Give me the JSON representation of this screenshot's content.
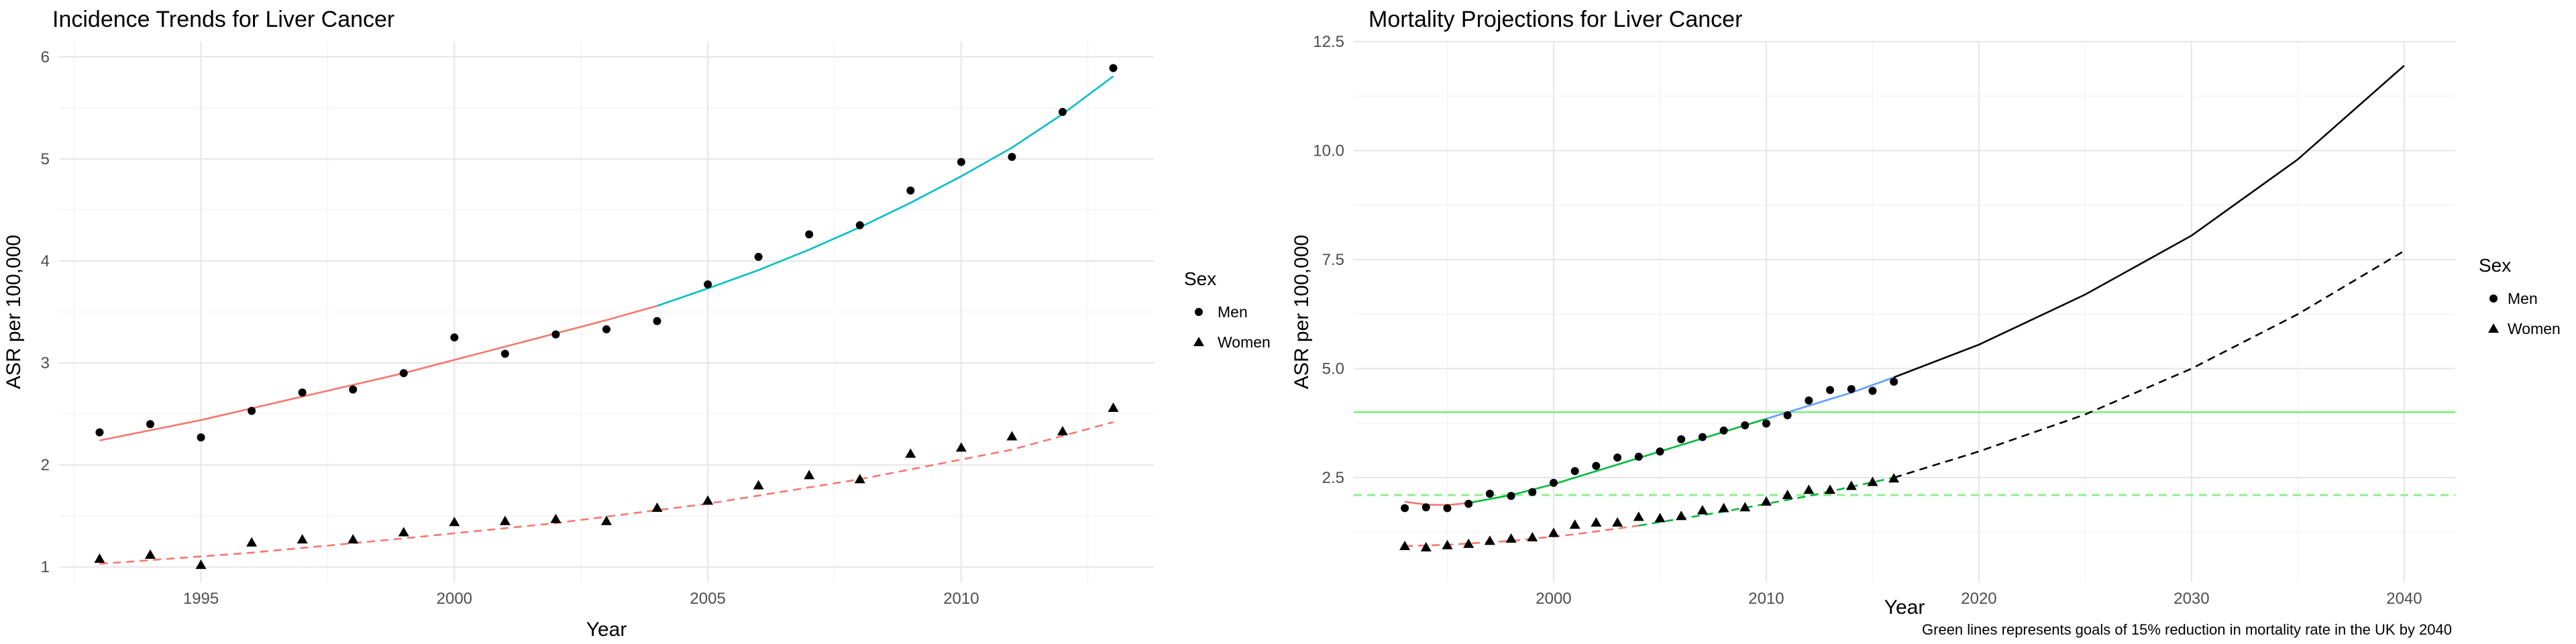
{
  "charts": [
    {
      "type": "scatter",
      "title": "Incidence Trends for Liver Cancer",
      "xlabel": "Year",
      "ylabel": "ASR per 100,000",
      "xlim": [
        1992.2,
        2013.8
      ],
      "ylim": [
        0.85,
        6.15
      ],
      "xticks": [
        1995,
        2000,
        2005,
        2010
      ],
      "xtick_labels": [
        "1995",
        "2000",
        "2005",
        "2010"
      ],
      "yticks": [
        1,
        2,
        3,
        4,
        5,
        6
      ],
      "ytick_labels": [
        "1",
        "2",
        "3",
        "4",
        "5",
        "6"
      ],
      "grid": true,
      "legend": {
        "title": "Sex",
        "position": "right",
        "entries": [
          {
            "label": "Men",
            "shape": "circle"
          },
          {
            "label": "Women",
            "shape": "triangle"
          }
        ]
      },
      "series": [
        {
          "name": "Men",
          "shape": "circle",
          "x": [
            1993,
            1994,
            1995,
            1996,
            1997,
            1998,
            1999,
            2000,
            2001,
            2002,
            2003,
            2004,
            2005,
            2006,
            2007,
            2008,
            2009,
            2010,
            2011,
            2012,
            2013
          ],
          "y": [
            2.32,
            2.4,
            2.27,
            2.53,
            2.71,
            2.74,
            2.9,
            3.25,
            3.09,
            3.28,
            3.33,
            3.41,
            3.77,
            4.04,
            4.26,
            4.35,
            4.69,
            4.97,
            5.02,
            5.46,
            5.89
          ]
        },
        {
          "name": "Women",
          "shape": "triangle",
          "x": [
            1993,
            1994,
            1995,
            1996,
            1997,
            1998,
            1999,
            2000,
            2001,
            2002,
            2003,
            2004,
            2005,
            2006,
            2007,
            2008,
            2009,
            2010,
            2011,
            2012,
            2013
          ],
          "y": [
            1.08,
            1.12,
            1.02,
            1.24,
            1.27,
            1.27,
            1.34,
            1.44,
            1.45,
            1.47,
            1.45,
            1.58,
            1.65,
            1.8,
            1.9,
            1.86,
            2.11,
            2.17,
            2.28,
            2.33,
            2.56
          ]
        }
      ],
      "lines": [
        {
          "color": "#f8766d",
          "dash": "solid",
          "x": [
            1993,
            1995,
            1997,
            1999,
            2001,
            2003,
            2004
          ],
          "y": [
            2.24,
            2.44,
            2.67,
            2.9,
            3.16,
            3.42,
            3.56
          ]
        },
        {
          "color": "#00bfc4",
          "dash": "solid",
          "x": [
            2004,
            2005,
            2006,
            2007,
            2008,
            2009,
            2010,
            2011,
            2012,
            2013
          ],
          "y": [
            3.56,
            3.73,
            3.91,
            4.11,
            4.33,
            4.57,
            4.83,
            5.11,
            5.44,
            5.81
          ]
        },
        {
          "color": "#f8766d",
          "dash": "dashed",
          "x": [
            1993,
            1996,
            1999,
            2002,
            2005,
            2008,
            2011,
            2013
          ],
          "y": [
            1.03,
            1.14,
            1.28,
            1.43,
            1.62,
            1.86,
            2.15,
            2.42
          ]
        }
      ]
    },
    {
      "type": "scatter",
      "title": "Mortality Projections for Liver Cancer",
      "xlabel": "Year",
      "ylabel": "ASR per 100,000",
      "caption": "Green lines represents goals of 15% reduction in mortality rate in the UK by 2040",
      "xlim": [
        1990.6,
        2042.4
      ],
      "ylim": [
        0.1,
        12.5
      ],
      "xticks": [
        2000,
        2010,
        2020,
        2030,
        2040
      ],
      "xtick_labels": [
        "2000",
        "2010",
        "2020",
        "2030",
        "2040"
      ],
      "yticks": [
        2.5,
        5.0,
        7.5,
        10.0,
        12.5
      ],
      "ytick_labels": [
        "2.5",
        "5.0",
        "7.5",
        "10.0",
        "12.5"
      ],
      "grid": true,
      "legend": {
        "title": "Sex",
        "position": "right",
        "entries": [
          {
            "label": "Men",
            "shape": "circle"
          },
          {
            "label": "Women",
            "shape": "triangle"
          }
        ]
      },
      "series": [
        {
          "name": "Men",
          "shape": "circle",
          "x": [
            1993,
            1994,
            1995,
            1996,
            1997,
            1998,
            1999,
            2000,
            2001,
            2002,
            2003,
            2004,
            2005,
            2006,
            2007,
            2008,
            2009,
            2010,
            2011,
            2012,
            2013,
            2014,
            2015,
            2016
          ],
          "y": [
            1.8,
            1.82,
            1.8,
            1.9,
            2.13,
            2.08,
            2.17,
            2.38,
            2.65,
            2.77,
            2.96,
            2.98,
            3.1,
            3.38,
            3.43,
            3.58,
            3.7,
            3.74,
            3.93,
            4.27,
            4.51,
            4.53,
            4.49,
            4.7
          ]
        },
        {
          "name": "Women",
          "shape": "triangle",
          "x": [
            1993,
            1994,
            1995,
            1996,
            1997,
            1998,
            1999,
            2000,
            2001,
            2002,
            2003,
            2004,
            2005,
            2006,
            2007,
            2008,
            2009,
            2010,
            2011,
            2012,
            2013,
            2014,
            2015,
            2016
          ],
          "y": [
            0.93,
            0.9,
            0.95,
            0.98,
            1.05,
            1.1,
            1.13,
            1.23,
            1.42,
            1.47,
            1.47,
            1.6,
            1.57,
            1.62,
            1.75,
            1.8,
            1.82,
            1.95,
            2.1,
            2.22,
            2.22,
            2.31,
            2.4,
            2.48
          ]
        }
      ],
      "lines": [
        {
          "color": "#f8766d",
          "dash": "solid",
          "x": [
            1993,
            1994,
            1995,
            1996
          ],
          "y": [
            1.95,
            1.88,
            1.87,
            1.92
          ]
        },
        {
          "color": "#00ba38",
          "dash": "solid",
          "x": [
            1996,
            1998,
            2000,
            2002,
            2004,
            2006,
            2008,
            2010
          ],
          "y": [
            1.92,
            2.1,
            2.35,
            2.65,
            2.95,
            3.25,
            3.55,
            3.85
          ]
        },
        {
          "color": "#619cff",
          "dash": "solid",
          "x": [
            2010,
            2012,
            2014,
            2016
          ],
          "y": [
            3.85,
            4.15,
            4.45,
            4.8
          ]
        },
        {
          "color": "#000000",
          "dash": "solid",
          "x": [
            2016,
            2020,
            2025,
            2030,
            2035,
            2040
          ],
          "y": [
            4.8,
            5.55,
            6.7,
            8.05,
            9.8,
            11.95
          ]
        },
        {
          "color": "#f8766d",
          "dash": "dashed",
          "x": [
            1993,
            1995,
            1998,
            2001,
            2004
          ],
          "y": [
            0.93,
            0.96,
            1.05,
            1.2,
            1.4
          ]
        },
        {
          "color": "#00ba38",
          "dash": "dashed",
          "x": [
            2004,
            2008,
            2012,
            2016
          ],
          "y": [
            1.4,
            1.72,
            2.08,
            2.5
          ]
        },
        {
          "color": "#000000",
          "dash": "dashed",
          "x": [
            2016,
            2020,
            2025,
            2030,
            2035,
            2040
          ],
          "y": [
            2.5,
            3.1,
            3.95,
            5.0,
            6.25,
            7.7
          ]
        }
      ],
      "hlines": [
        {
          "y": 4.0,
          "color": "#90ee90",
          "dash": "solid"
        },
        {
          "y": 2.1,
          "color": "#90ee90",
          "dash": "dashed"
        }
      ]
    }
  ]
}
